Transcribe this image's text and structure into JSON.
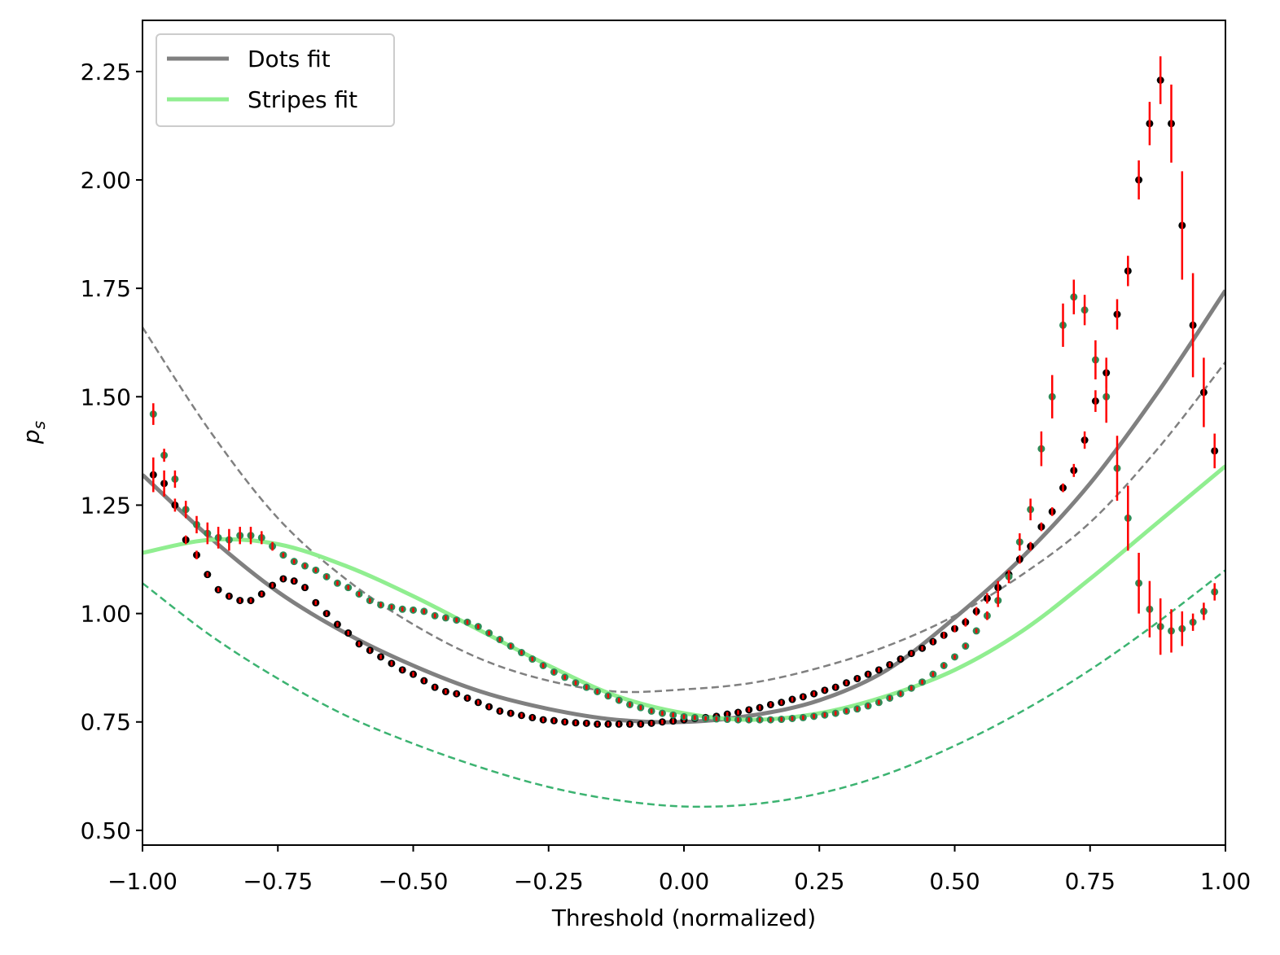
{
  "chart_data": {
    "type": "scatter",
    "x_label": "Threshold (normalized)",
    "y_label": {
      "base": "p",
      "sub": "s"
    },
    "xlim": [
      -1,
      1
    ],
    "ylim": [
      0.466,
      2.368
    ],
    "xticks": [
      {
        "value": -1,
        "label": "−1.00"
      },
      {
        "value": -0.75,
        "label": "−0.75"
      },
      {
        "value": -0.5,
        "label": "−0.50"
      },
      {
        "value": -0.25,
        "label": "−0.25"
      },
      {
        "value": 0,
        "label": "0.00"
      },
      {
        "value": 0.25,
        "label": "0.25"
      },
      {
        "value": 0.5,
        "label": "0.50"
      },
      {
        "value": 0.75,
        "label": "0.75"
      },
      {
        "value": 1,
        "label": "1.00"
      }
    ],
    "yticks": [
      {
        "value": 0.5,
        "label": "0.50"
      },
      0.75,
      {
        "value": 1,
        "label": "1.00"
      },
      1.25,
      {
        "value": 1.5,
        "label": "1.50"
      },
      1.75,
      {
        "value": 2,
        "label": "2.00"
      },
      2.25
    ],
    "legend": "upper left",
    "x": [
      -0.98,
      -0.96,
      -0.94,
      -0.92,
      -0.9,
      -0.88,
      -0.86,
      -0.84,
      -0.82,
      -0.8,
      -0.78,
      -0.76,
      -0.74,
      -0.72,
      -0.7,
      -0.68,
      -0.66,
      -0.64,
      -0.62,
      -0.6,
      -0.58,
      -0.56,
      -0.54,
      -0.52,
      -0.5,
      -0.48,
      -0.46,
      -0.44,
      -0.42,
      -0.4,
      -0.38,
      -0.36,
      -0.34,
      -0.32,
      -0.3,
      -0.28,
      -0.26,
      -0.24,
      -0.22,
      -0.2,
      -0.18,
      -0.16,
      -0.14,
      -0.12,
      -0.1,
      -0.08,
      -0.06,
      -0.04,
      -0.02,
      0,
      0.02,
      0.04,
      0.06,
      0.08,
      0.1,
      0.12,
      0.14,
      0.16,
      0.18,
      0.2,
      0.22,
      0.24,
      0.26,
      0.28,
      0.3,
      0.32,
      0.34,
      0.36,
      0.38,
      0.4,
      0.42,
      0.44,
      0.46,
      0.48,
      0.5,
      0.52,
      0.54,
      0.56,
      0.58,
      0.6,
      0.62,
      0.64,
      0.66,
      0.68,
      0.7,
      0.72,
      0.74,
      0.76,
      0.78,
      0.8,
      0.82,
      0.84,
      0.86,
      0.88,
      0.9,
      0.92,
      0.94,
      0.96,
      0.98
    ],
    "series": [
      {
        "color": "#000000",
        "error_color": "#ff0000",
        "values": [
          1.32,
          1.3,
          1.25,
          1.17,
          1.135,
          1.09,
          1.055,
          1.04,
          1.03,
          1.03,
          1.045,
          1.065,
          1.08,
          1.075,
          1.06,
          1.025,
          1.0,
          0.975,
          0.955,
          0.93,
          0.915,
          0.9,
          0.885,
          0.87,
          0.86,
          0.845,
          0.83,
          0.82,
          0.815,
          0.805,
          0.795,
          0.785,
          0.775,
          0.77,
          0.765,
          0.76,
          0.755,
          0.753,
          0.75,
          0.748,
          0.747,
          0.745,
          0.745,
          0.745,
          0.745,
          0.745,
          0.747,
          0.75,
          0.752,
          0.755,
          0.758,
          0.76,
          0.763,
          0.768,
          0.772,
          0.778,
          0.783,
          0.79,
          0.795,
          0.802,
          0.808,
          0.815,
          0.823,
          0.83,
          0.84,
          0.85,
          0.86,
          0.87,
          0.882,
          0.895,
          0.908,
          0.92,
          0.935,
          0.95,
          0.965,
          0.98,
          1.005,
          1.035,
          1.06,
          1.09,
          1.125,
          1.155,
          1.2,
          1.235,
          1.29,
          1.33,
          1.4,
          1.49,
          1.555,
          1.69,
          1.79,
          2.0,
          2.13,
          2.23,
          2.13,
          1.895,
          1.665,
          1.51,
          1.375
        ],
        "errors": [
          0.04,
          0.03,
          0.015,
          0.01,
          0.01,
          0.005,
          0.005,
          0.005,
          0.005,
          0.005,
          0.005,
          0.005,
          0.005,
          0.005,
          0.005,
          0.005,
          0.005,
          0.005,
          0.005,
          0.005,
          0.005,
          0.005,
          0.005,
          0.005,
          0.005,
          0.005,
          0.005,
          0.005,
          0.005,
          0.005,
          0.005,
          0.005,
          0.005,
          0.005,
          0.005,
          0.005,
          0.005,
          0.005,
          0.005,
          0.005,
          0.005,
          0.005,
          0.005,
          0.005,
          0.005,
          0.005,
          0.005,
          0.005,
          0.005,
          0.005,
          0.005,
          0.005,
          0.005,
          0.005,
          0.005,
          0.005,
          0.005,
          0.005,
          0.005,
          0.005,
          0.005,
          0.005,
          0.005,
          0.005,
          0.005,
          0.005,
          0.005,
          0.005,
          0.005,
          0.005,
          0.005,
          0.005,
          0.006,
          0.007,
          0.008,
          0.01,
          0.01,
          0.012,
          0.015,
          0.01,
          0.01,
          0.01,
          0.01,
          0.01,
          0.01,
          0.015,
          0.02,
          0.025,
          0.035,
          0.035,
          0.035,
          0.045,
          0.05,
          0.055,
          0.09,
          0.125,
          0.12,
          0.08,
          0.04
        ]
      },
      {
        "color": "#2e8b57",
        "error_color": "#ff0000",
        "values": [
          1.46,
          1.365,
          1.31,
          1.24,
          1.205,
          1.185,
          1.175,
          1.17,
          1.18,
          1.18,
          1.175,
          1.155,
          1.135,
          1.12,
          1.11,
          1.1,
          1.085,
          1.07,
          1.06,
          1.045,
          1.03,
          1.02,
          1.015,
          1.01,
          1.008,
          1.005,
          0.995,
          0.99,
          0.985,
          0.98,
          0.97,
          0.955,
          0.94,
          0.925,
          0.91,
          0.895,
          0.88,
          0.865,
          0.853,
          0.84,
          0.83,
          0.82,
          0.81,
          0.8,
          0.79,
          0.783,
          0.775,
          0.77,
          0.766,
          0.762,
          0.76,
          0.758,
          0.757,
          0.756,
          0.755,
          0.755,
          0.755,
          0.755,
          0.756,
          0.758,
          0.76,
          0.763,
          0.766,
          0.77,
          0.775,
          0.78,
          0.787,
          0.795,
          0.805,
          0.815,
          0.828,
          0.842,
          0.86,
          0.88,
          0.9,
          0.925,
          0.96,
          0.995,
          1.03,
          1.085,
          1.165,
          1.24,
          1.38,
          1.5,
          1.665,
          1.73,
          1.7,
          1.585,
          1.5,
          1.335,
          1.22,
          1.07,
          1.01,
          0.97,
          0.96,
          0.965,
          0.98,
          1.005,
          1.05
        ],
        "errors": [
          0.025,
          0.015,
          0.02,
          0.02,
          0.02,
          0.025,
          0.025,
          0.025,
          0.02,
          0.02,
          0.015,
          0.01,
          0.005,
          0.005,
          0.005,
          0.005,
          0.005,
          0.005,
          0.005,
          0.005,
          0.005,
          0.005,
          0.005,
          0.005,
          0.005,
          0.005,
          0.005,
          0.005,
          0.005,
          0.005,
          0.005,
          0.005,
          0.005,
          0.005,
          0.005,
          0.005,
          0.005,
          0.005,
          0.005,
          0.005,
          0.005,
          0.005,
          0.005,
          0.005,
          0.005,
          0.005,
          0.005,
          0.005,
          0.005,
          0.005,
          0.005,
          0.005,
          0.005,
          0.005,
          0.005,
          0.005,
          0.005,
          0.005,
          0.005,
          0.005,
          0.005,
          0.005,
          0.005,
          0.005,
          0.005,
          0.005,
          0.005,
          0.005,
          0.005,
          0.005,
          0.005,
          0.005,
          0.005,
          0.005,
          0.005,
          0.005,
          0.005,
          0.01,
          0.015,
          0.015,
          0.02,
          0.025,
          0.04,
          0.05,
          0.05,
          0.04,
          0.035,
          0.045,
          0.06,
          0.075,
          0.075,
          0.07,
          0.065,
          0.065,
          0.05,
          0.04,
          0.02,
          0.02,
          0.02
        ]
      }
    ],
    "curve_x": [
      -1,
      -0.875,
      -0.75,
      -0.625,
      -0.5,
      -0.375,
      -0.25,
      -0.125,
      0,
      0.125,
      0.25,
      0.375,
      0.5,
      0.625,
      0.75,
      0.875,
      1
    ],
    "lines": [
      {
        "style": "dashed",
        "color": "#808080",
        "values": [
          1.66,
          1.42,
          1.22,
          1.08,
          0.975,
          0.895,
          0.845,
          0.82,
          0.825,
          0.84,
          0.875,
          0.925,
          0.995,
          1.09,
          1.21,
          1.38,
          1.58
        ]
      },
      {
        "style": "dashed",
        "color": "#3cb371",
        "values": [
          1.07,
          0.95,
          0.85,
          0.765,
          0.7,
          0.645,
          0.6,
          0.57,
          0.555,
          0.56,
          0.585,
          0.63,
          0.695,
          0.775,
          0.87,
          0.98,
          1.1
        ]
      },
      {
        "name": "Dots fit",
        "style": "solid",
        "color": "#808080",
        "values": [
          1.32,
          1.175,
          1.05,
          0.955,
          0.88,
          0.82,
          0.78,
          0.755,
          0.75,
          0.765,
          0.8,
          0.87,
          0.99,
          1.13,
          1.3,
          1.51,
          1.745
        ]
      },
      {
        "name": "Stripes fit",
        "style": "solid",
        "color": "#90ee90",
        "values": [
          1.14,
          1.17,
          1.16,
          1.11,
          1.04,
          0.96,
          0.88,
          0.81,
          0.77,
          0.755,
          0.77,
          0.81,
          0.87,
          0.96,
          1.08,
          1.21,
          1.34
        ]
      }
    ]
  }
}
